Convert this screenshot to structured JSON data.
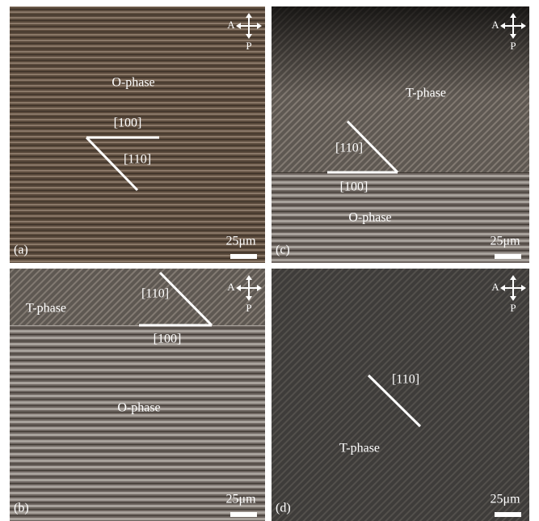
{
  "analyzer": "A",
  "polarizer": "P",
  "scale_bar": "25μm",
  "panels": [
    {
      "label": "(a)",
      "phases": [
        "O-phase"
      ],
      "directions": [
        "[100]",
        "[110]"
      ]
    },
    {
      "label": "(c)",
      "phases": [
        "T-phase",
        "O-phase"
      ],
      "directions": [
        "[110]",
        "[100]"
      ]
    },
    {
      "label": "(b)",
      "phases": [
        "T-phase",
        "O-phase"
      ],
      "directions": [
        "[110]",
        "[100]"
      ]
    },
    {
      "label": "(d)",
      "phases": [
        "T-phase"
      ],
      "directions": [
        "[110]"
      ]
    }
  ]
}
